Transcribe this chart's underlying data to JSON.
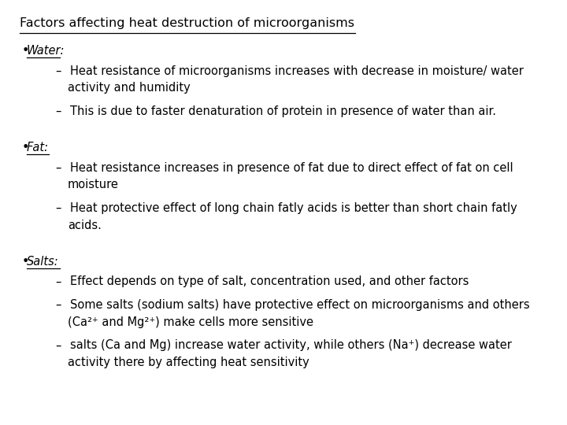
{
  "title": "Factors affecting heat destruction of microorganisms",
  "bg_color": "#ffffff",
  "text_color": "#000000",
  "title_fontsize": 11.5,
  "body_fontsize": 10.5,
  "sections": [
    {
      "bullet": "Water:",
      "sub_bullets": [
        "Heat resistance of microorganisms increases with decrease in moisture/ water\nactivity and humidity",
        "This is due to faster denaturation of protein in presence of water than air."
      ]
    },
    {
      "bullet": "Fat:",
      "sub_bullets": [
        "Heat resistance increases in presence of fat due to direct effect of fat on cell\nmoisture",
        "Heat protective effect of long chain fatly acids is better than short chain fatly\nacids."
      ]
    },
    {
      "bullet": "Salts:",
      "sub_bullets": [
        "Effect depends on type of salt, concentration used, and other factors",
        "Some salts (sodium salts) have protective effect on microorganisms and others\n(Ca²⁺ and Mg²⁺) make cells more sensitive",
        "salts (Ca and Mg) increase water activity, while others (Na⁺) decrease water\nactivity there by affecting heat sensitivity"
      ]
    }
  ]
}
